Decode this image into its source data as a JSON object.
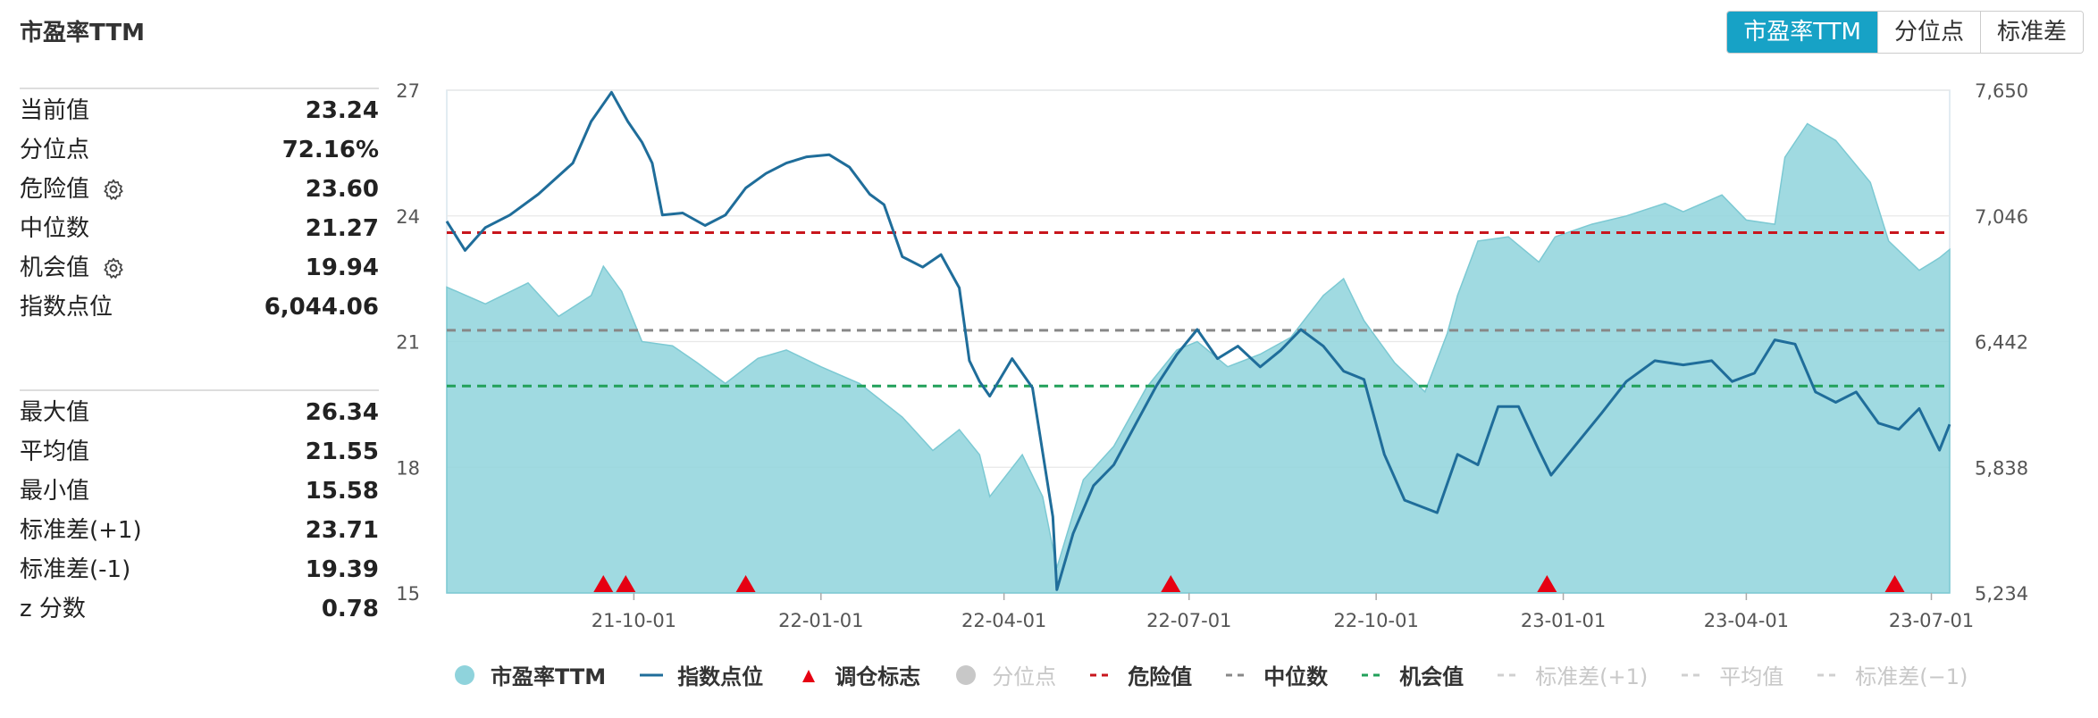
{
  "title": "市盈率TTM",
  "tabs": [
    {
      "label": "市盈率TTM",
      "active": true
    },
    {
      "label": "分位点",
      "active": false
    },
    {
      "label": "标准差",
      "active": false
    }
  ],
  "stats_top": [
    {
      "label": "当前值",
      "value": "23.24",
      "gear": false
    },
    {
      "label": "分位点",
      "value": "72.16%",
      "gear": false
    },
    {
      "label": "危险值",
      "value": "23.60",
      "gear": true
    },
    {
      "label": "中位数",
      "value": "21.27",
      "gear": false
    },
    {
      "label": "机会值",
      "value": "19.94",
      "gear": true
    },
    {
      "label": "指数点位",
      "value": "6,044.06",
      "gear": false
    }
  ],
  "stats_bottom": [
    {
      "label": "最大值",
      "value": "26.34"
    },
    {
      "label": "平均值",
      "value": "21.55"
    },
    {
      "label": "最小值",
      "value": "15.58"
    },
    {
      "label": "标准差(+1)",
      "value": "23.71"
    },
    {
      "label": "标准差(-1)",
      "value": "19.39"
    },
    {
      "label": "z 分数",
      "value": "0.78"
    }
  ],
  "legend": [
    {
      "label": "市盈率TTM",
      "symbol": "circle",
      "color": "#8fd3dc",
      "active": true
    },
    {
      "label": "指数点位",
      "symbol": "line",
      "color": "#1f6d9a",
      "active": true
    },
    {
      "label": "调仓标志",
      "symbol": "triangle",
      "color": "#e60012",
      "active": true
    },
    {
      "label": "分位点",
      "symbol": "circle",
      "color": "#c8c8c8",
      "active": false
    },
    {
      "label": "危险值",
      "symbol": "dash",
      "color": "#c8161d",
      "active": true
    },
    {
      "label": "中位数",
      "symbol": "dash",
      "color": "#888888",
      "active": true
    },
    {
      "label": "机会值",
      "symbol": "dash",
      "color": "#22a05a",
      "active": true
    },
    {
      "label": "标准差(+1)",
      "symbol": "dash",
      "color": "#d0d0d0",
      "active": false
    },
    {
      "label": "平均值",
      "symbol": "dash",
      "color": "#d0d0d0",
      "active": false
    },
    {
      "label": "标准差(−1)",
      "symbol": "dash",
      "color": "#d0d0d0",
      "active": false
    }
  ],
  "chart_data": {
    "type": "area",
    "x_range": [
      "2021-07-01",
      "2023-07-10"
    ],
    "x_ticks": [
      {
        "date": "2021-10-01",
        "label": "21-10-01"
      },
      {
        "date": "2022-01-01",
        "label": "22-01-01"
      },
      {
        "date": "2022-04-01",
        "label": "22-04-01"
      },
      {
        "date": "2022-07-01",
        "label": "22-07-01"
      },
      {
        "date": "2022-10-01",
        "label": "22-10-01"
      },
      {
        "date": "2023-01-01",
        "label": "23-01-01"
      },
      {
        "date": "2023-04-01",
        "label": "23-04-01"
      },
      {
        "date": "2023-07-01",
        "label": "23-07-01"
      }
    ],
    "y_left": {
      "min": 15,
      "max": 27,
      "ticks": [
        "15",
        "18",
        "21",
        "24",
        "27"
      ]
    },
    "y_right": {
      "min": 5234,
      "max": 7650,
      "ticks": [
        "5,234",
        "5,838",
        "6,442",
        "7,046",
        "7,650"
      ]
    },
    "grid": true,
    "series": [
      {
        "name": "市盈率TTM",
        "type": "area",
        "axis": "left",
        "color": "#8fd3dc",
        "points": [
          [
            "2021-07-01",
            22.3
          ],
          [
            "2021-07-20",
            21.9
          ],
          [
            "2021-08-10",
            22.4
          ],
          [
            "2021-08-25",
            21.6
          ],
          [
            "2021-09-10",
            22.1
          ],
          [
            "2021-09-16",
            22.8
          ],
          [
            "2021-09-25",
            22.2
          ],
          [
            "2021-10-05",
            21.0
          ],
          [
            "2021-10-20",
            20.9
          ],
          [
            "2021-11-01",
            20.5
          ],
          [
            "2021-11-15",
            20.0
          ],
          [
            "2021-12-01",
            20.6
          ],
          [
            "2021-12-15",
            20.8
          ],
          [
            "2022-01-01",
            20.4
          ],
          [
            "2022-01-20",
            20.0
          ],
          [
            "2022-02-10",
            19.2
          ],
          [
            "2022-02-25",
            18.4
          ],
          [
            "2022-03-10",
            18.9
          ],
          [
            "2022-03-20",
            18.3
          ],
          [
            "2022-03-25",
            17.3
          ],
          [
            "2022-04-10",
            18.3
          ],
          [
            "2022-04-20",
            17.3
          ],
          [
            "2022-04-27",
            15.6
          ],
          [
            "2022-05-10",
            17.7
          ],
          [
            "2022-05-25",
            18.5
          ],
          [
            "2022-06-10",
            19.9
          ],
          [
            "2022-06-25",
            20.8
          ],
          [
            "2022-07-05",
            21.0
          ],
          [
            "2022-07-20",
            20.4
          ],
          [
            "2022-08-05",
            20.7
          ],
          [
            "2022-08-20",
            21.1
          ],
          [
            "2022-09-05",
            22.1
          ],
          [
            "2022-09-15",
            22.5
          ],
          [
            "2022-09-25",
            21.5
          ],
          [
            "2022-10-10",
            20.5
          ],
          [
            "2022-10-25",
            19.8
          ],
          [
            "2022-11-05",
            21.2
          ],
          [
            "2022-11-10",
            22.1
          ],
          [
            "2022-11-20",
            23.4
          ],
          [
            "2022-12-05",
            23.5
          ],
          [
            "2022-12-20",
            22.9
          ],
          [
            "2022-12-28",
            23.5
          ],
          [
            "2023-01-15",
            23.8
          ],
          [
            "2023-02-01",
            24.0
          ],
          [
            "2023-02-20",
            24.3
          ],
          [
            "2023-03-01",
            24.1
          ],
          [
            "2023-03-20",
            24.5
          ],
          [
            "2023-04-01",
            23.9
          ],
          [
            "2023-04-15",
            23.8
          ],
          [
            "2023-04-20",
            25.4
          ],
          [
            "2023-05-01",
            26.2
          ],
          [
            "2023-05-15",
            25.8
          ],
          [
            "2023-06-01",
            24.8
          ],
          [
            "2023-06-10",
            23.4
          ],
          [
            "2023-06-25",
            22.7
          ],
          [
            "2023-07-05",
            23.0
          ],
          [
            "2023-07-10",
            23.2
          ]
        ]
      },
      {
        "name": "指数点位",
        "type": "line",
        "axis": "right",
        "color": "#1f6d9a",
        "points": [
          [
            "2021-07-01",
            7020
          ],
          [
            "2021-07-10",
            6880
          ],
          [
            "2021-07-20",
            6990
          ],
          [
            "2021-08-01",
            7050
          ],
          [
            "2021-08-15",
            7150
          ],
          [
            "2021-09-01",
            7300
          ],
          [
            "2021-09-10",
            7500
          ],
          [
            "2021-09-20",
            7640
          ],
          [
            "2021-09-28",
            7500
          ],
          [
            "2021-10-05",
            7400
          ],
          [
            "2021-10-10",
            7300
          ],
          [
            "2021-10-15",
            7050
          ],
          [
            "2021-10-25",
            7060
          ],
          [
            "2021-11-05",
            7000
          ],
          [
            "2021-11-15",
            7050
          ],
          [
            "2021-11-25",
            7180
          ],
          [
            "2021-12-05",
            7250
          ],
          [
            "2021-12-15",
            7300
          ],
          [
            "2021-12-25",
            7330
          ],
          [
            "2022-01-05",
            7340
          ],
          [
            "2022-01-15",
            7280
          ],
          [
            "2022-01-25",
            7150
          ],
          [
            "2022-02-01",
            7100
          ],
          [
            "2022-02-10",
            6850
          ],
          [
            "2022-02-20",
            6800
          ],
          [
            "2022-03-01",
            6860
          ],
          [
            "2022-03-10",
            6700
          ],
          [
            "2022-03-15",
            6350
          ],
          [
            "2022-03-20",
            6250
          ],
          [
            "2022-03-25",
            6180
          ],
          [
            "2022-04-05",
            6360
          ],
          [
            "2022-04-15",
            6220
          ],
          [
            "2022-04-25",
            5600
          ],
          [
            "2022-04-27",
            5250
          ],
          [
            "2022-05-05",
            5520
          ],
          [
            "2022-05-15",
            5750
          ],
          [
            "2022-05-25",
            5850
          ],
          [
            "2022-06-05",
            6050
          ],
          [
            "2022-06-15",
            6230
          ],
          [
            "2022-06-25",
            6380
          ],
          [
            "2022-07-05",
            6500
          ],
          [
            "2022-07-15",
            6360
          ],
          [
            "2022-07-25",
            6420
          ],
          [
            "2022-08-05",
            6320
          ],
          [
            "2022-08-15",
            6400
          ],
          [
            "2022-08-25",
            6500
          ],
          [
            "2022-09-05",
            6420
          ],
          [
            "2022-09-15",
            6300
          ],
          [
            "2022-09-25",
            6260
          ],
          [
            "2022-10-05",
            5900
          ],
          [
            "2022-10-15",
            5680
          ],
          [
            "2022-10-31",
            5620
          ],
          [
            "2022-11-10",
            5900
          ],
          [
            "2022-11-20",
            5850
          ],
          [
            "2022-11-30",
            6130
          ],
          [
            "2022-12-10",
            6130
          ],
          [
            "2022-12-20",
            5920
          ],
          [
            "2022-12-26",
            5800
          ],
          [
            "2023-01-10",
            5980
          ],
          [
            "2023-01-20",
            6100
          ],
          [
            "2023-02-01",
            6250
          ],
          [
            "2023-02-15",
            6350
          ],
          [
            "2023-03-01",
            6330
          ],
          [
            "2023-03-15",
            6350
          ],
          [
            "2023-03-25",
            6250
          ],
          [
            "2023-04-05",
            6290
          ],
          [
            "2023-04-15",
            6450
          ],
          [
            "2023-04-25",
            6430
          ],
          [
            "2023-05-05",
            6200
          ],
          [
            "2023-05-15",
            6150
          ],
          [
            "2023-05-25",
            6200
          ],
          [
            "2023-06-05",
            6050
          ],
          [
            "2023-06-15",
            6020
          ],
          [
            "2023-06-25",
            6120
          ],
          [
            "2023-07-05",
            5920
          ],
          [
            "2023-07-10",
            6044
          ]
        ]
      }
    ],
    "reference_lines": [
      {
        "name": "危险值",
        "value": 23.6,
        "axis": "left",
        "color": "#c8161d",
        "dash": "10 7"
      },
      {
        "name": "中位数",
        "value": 21.27,
        "axis": "left",
        "color": "#888888",
        "dash": "10 7"
      },
      {
        "name": "机会值",
        "value": 19.94,
        "axis": "left",
        "color": "#22a05a",
        "dash": "10 7"
      }
    ],
    "markers": {
      "name": "调仓标志",
      "color": "#e60012",
      "dates": [
        "2021-09-16",
        "2021-09-27",
        "2021-11-25",
        "2022-06-22",
        "2022-12-24",
        "2023-06-13"
      ]
    }
  }
}
